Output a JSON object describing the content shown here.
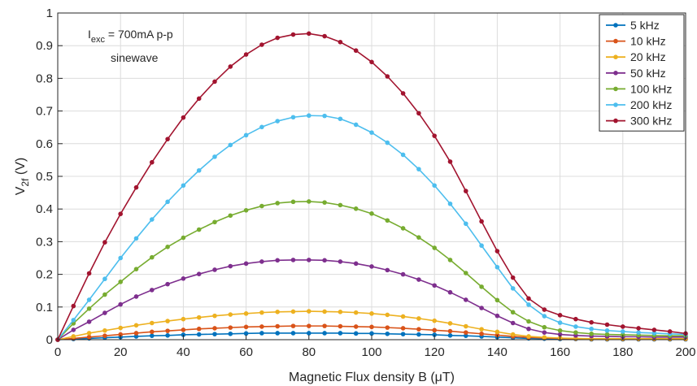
{
  "chart_data": {
    "type": "line",
    "xlabel": "Magnetic Flux density B  (μT)",
    "ylabel": "V_2f (V)",
    "xlim": [
      0,
      200
    ],
    "ylim": [
      0,
      1
    ],
    "xticks": [
      0,
      20,
      40,
      60,
      80,
      100,
      120,
      140,
      160,
      180,
      200
    ],
    "yticks": [
      0,
      0.1,
      0.2,
      0.3,
      0.4,
      0.5,
      0.6,
      0.7,
      0.8,
      0.9,
      1
    ],
    "grid": true,
    "legend_location": "top-right",
    "annotation": {
      "line1_main": "I",
      "line1_sub": "exc",
      "line1_rest": " = 700mA p-p",
      "line2": "sinewave"
    },
    "x": [
      0,
      5,
      10,
      15,
      20,
      25,
      30,
      35,
      40,
      45,
      50,
      55,
      60,
      65,
      70,
      75,
      80,
      85,
      90,
      95,
      100,
      105,
      110,
      115,
      120,
      125,
      130,
      135,
      140,
      145,
      150,
      155,
      160,
      165,
      170,
      175,
      180,
      185,
      190,
      195,
      200
    ],
    "series": [
      {
        "name": "5 kHz",
        "color": "#0072BD",
        "values": [
          0,
          0.002,
          0.004,
          0.006,
          0.008,
          0.01,
          0.012,
          0.013,
          0.015,
          0.016,
          0.017,
          0.018,
          0.019,
          0.02,
          0.02,
          0.02,
          0.02,
          0.02,
          0.02,
          0.019,
          0.019,
          0.018,
          0.017,
          0.016,
          0.015,
          0.013,
          0.012,
          0.01,
          0.008,
          0.006,
          0.004,
          0.003,
          0.002,
          0.002,
          0.001,
          0.001,
          0.001,
          0.001,
          0.001,
          0.001,
          0.001
        ]
      },
      {
        "name": "10 kHz",
        "color": "#D95319",
        "values": [
          0,
          0.004,
          0.008,
          0.012,
          0.016,
          0.02,
          0.024,
          0.027,
          0.03,
          0.033,
          0.035,
          0.037,
          0.039,
          0.04,
          0.041,
          0.042,
          0.042,
          0.042,
          0.041,
          0.04,
          0.039,
          0.037,
          0.035,
          0.032,
          0.029,
          0.026,
          0.022,
          0.018,
          0.014,
          0.01,
          0.007,
          0.005,
          0.004,
          0.003,
          0.002,
          0.002,
          0.002,
          0.002,
          0.002,
          0.002,
          0.002
        ]
      },
      {
        "name": "20 kHz",
        "color": "#EDB120",
        "values": [
          0,
          0.01,
          0.02,
          0.028,
          0.036,
          0.044,
          0.051,
          0.057,
          0.063,
          0.068,
          0.073,
          0.077,
          0.08,
          0.083,
          0.085,
          0.086,
          0.087,
          0.086,
          0.085,
          0.083,
          0.08,
          0.076,
          0.071,
          0.065,
          0.058,
          0.05,
          0.041,
          0.032,
          0.024,
          0.016,
          0.01,
          0.007,
          0.005,
          0.004,
          0.003,
          0.003,
          0.003,
          0.003,
          0.003,
          0.003,
          0.003
        ]
      },
      {
        "name": "50 kHz",
        "color": "#7E2F8E",
        "values": [
          0,
          0.03,
          0.055,
          0.082,
          0.108,
          0.132,
          0.152,
          0.17,
          0.187,
          0.201,
          0.214,
          0.225,
          0.233,
          0.239,
          0.243,
          0.244,
          0.244,
          0.243,
          0.239,
          0.233,
          0.224,
          0.213,
          0.2,
          0.184,
          0.166,
          0.145,
          0.122,
          0.097,
          0.073,
          0.051,
          0.033,
          0.022,
          0.016,
          0.013,
          0.011,
          0.01,
          0.009,
          0.009,
          0.008,
          0.008,
          0.008
        ]
      },
      {
        "name": "100 kHz",
        "color": "#77AC30",
        "values": [
          0,
          0.05,
          0.095,
          0.138,
          0.177,
          0.216,
          0.252,
          0.284,
          0.312,
          0.337,
          0.36,
          0.38,
          0.396,
          0.409,
          0.418,
          0.422,
          0.423,
          0.42,
          0.412,
          0.401,
          0.386,
          0.365,
          0.341,
          0.313,
          0.281,
          0.244,
          0.204,
          0.162,
          0.121,
          0.084,
          0.056,
          0.038,
          0.028,
          0.022,
          0.018,
          0.016,
          0.015,
          0.014,
          0.013,
          0.012,
          0.012
        ]
      },
      {
        "name": "200 kHz",
        "color": "#4DBEEE",
        "values": [
          0,
          0.06,
          0.122,
          0.186,
          0.25,
          0.31,
          0.368,
          0.422,
          0.472,
          0.518,
          0.56,
          0.596,
          0.626,
          0.651,
          0.669,
          0.681,
          0.686,
          0.685,
          0.676,
          0.658,
          0.634,
          0.603,
          0.566,
          0.522,
          0.472,
          0.416,
          0.355,
          0.288,
          0.222,
          0.157,
          0.107,
          0.072,
          0.052,
          0.04,
          0.033,
          0.028,
          0.025,
          0.022,
          0.02,
          0.018,
          0.016
        ]
      },
      {
        "name": "300 kHz",
        "color": "#A2142F",
        "values": [
          0,
          0.103,
          0.203,
          0.298,
          0.385,
          0.466,
          0.543,
          0.614,
          0.68,
          0.738,
          0.79,
          0.836,
          0.873,
          0.903,
          0.924,
          0.934,
          0.937,
          0.929,
          0.911,
          0.885,
          0.85,
          0.806,
          0.754,
          0.693,
          0.624,
          0.545,
          0.455,
          0.362,
          0.271,
          0.19,
          0.126,
          0.092,
          0.075,
          0.063,
          0.053,
          0.046,
          0.04,
          0.035,
          0.03,
          0.025,
          0.019
        ]
      }
    ]
  }
}
